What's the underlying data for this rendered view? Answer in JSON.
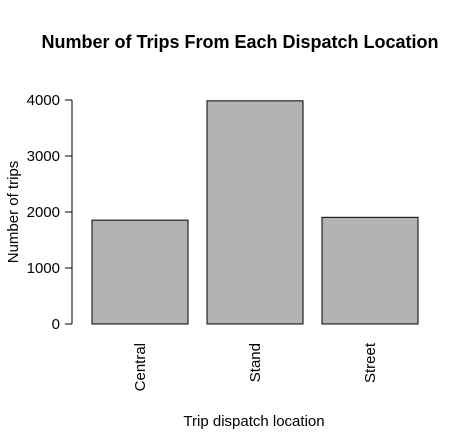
{
  "chart_data": {
    "type": "bar",
    "title": "Number of Trips From Each Dispatch Location",
    "xlabel": "Trip dispatch location",
    "ylabel": "Number of trips",
    "categories": [
      "Central",
      "Stand",
      "Street"
    ],
    "values": [
      1855,
      3985,
      1905
    ],
    "ylim": [
      0,
      4000
    ],
    "yticks": [
      "0",
      "1000",
      "2000",
      "3000",
      "4000"
    ],
    "grid": false,
    "legend": "none",
    "bar_color": "#b3b3b3",
    "bar_border_color": "#000000"
  }
}
